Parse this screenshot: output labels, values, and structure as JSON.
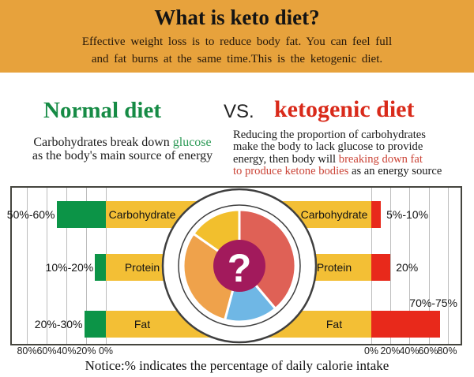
{
  "colors": {
    "header_bg": "#e7a23c",
    "green_heading": "#168b45",
    "red_heading": "#d92a1a",
    "green_highlight": "#2c9a56",
    "red_highlight": "#cb4437",
    "green_bar": "#0c9447",
    "yellow_bar": "#f3bf35",
    "red_bar": "#e8291b"
  },
  "header": {
    "title": "What is keto diet?",
    "subtitle_line1": "Effective weight loss is to reduce body fat. You can feel full",
    "subtitle_line2": "and fat burns at the same time.This is the ketogenic diet."
  },
  "comparison": {
    "left_title": "Normal diet",
    "vs": "VS.",
    "right_title": "ketogenic diet"
  },
  "descriptions": {
    "left": {
      "line1_prefix": "Carbohydrates break down ",
      "line1_highlight": "glucose",
      "line2": "as the body's main source of energy"
    },
    "right": {
      "line1": "Reducing the proportion of carbohydrates",
      "line2": "make the body to lack glucose to provide",
      "line3_prefix": "energy, then body will ",
      "line3_highlight": "breaking down fat",
      "line4_highlight": "to produce ketone bodies",
      "line4_suffix": " as an energy source"
    }
  },
  "chart_data": {
    "type": "bar",
    "layout": "diverging-horizontal-two-sided",
    "categories": [
      "Carbohydrate",
      "Protein",
      "Fat"
    ],
    "series": [
      {
        "name": "Normal diet",
        "side": "left",
        "labels": [
          "50%-60%",
          "10%-20%",
          "20%-30%"
        ],
        "values": [
          50,
          11,
          22
        ],
        "bar_color": "#0c9447"
      },
      {
        "name": "ketogenic diet",
        "side": "right",
        "labels": [
          "5%-10%",
          "20%",
          "70%-75%"
        ],
        "values": [
          10,
          20,
          72
        ],
        "bar_color": "#e8291b"
      }
    ],
    "category_band_color": "#f3bf35",
    "axis": {
      "left_ticks": [
        "80%",
        "60%",
        "40%",
        "20%",
        "0%"
      ],
      "right_ticks": [
        "0%",
        "20%",
        "40%",
        "60%",
        "80%"
      ],
      "tick_step_pct": 20,
      "max_pct": 80,
      "grid": true
    },
    "pie": {
      "center_symbol": "?",
      "center_color": "#a21a5c",
      "slices": [
        {
          "name": "red-slice",
          "color": "#df6156",
          "start_deg": 0,
          "end_deg": 140
        },
        {
          "name": "blue-slice",
          "color": "#6fb7e5",
          "start_deg": 140,
          "end_deg": 195
        },
        {
          "name": "orange-slice",
          "color": "#efa24b",
          "start_deg": 195,
          "end_deg": 305
        },
        {
          "name": "yellow-slice",
          "color": "#f2bf2d",
          "start_deg": 305,
          "end_deg": 360
        }
      ]
    }
  },
  "notice": "Notice:% indicates the percentage of daily calorie intake"
}
